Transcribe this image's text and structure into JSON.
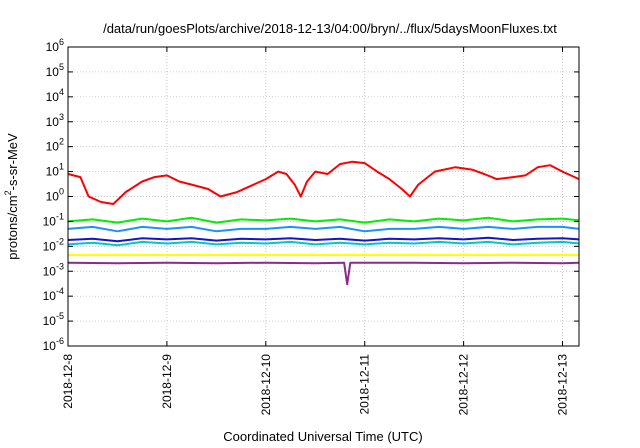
{
  "chart_data": {
    "type": "line",
    "title": "/data/run/goesPlots/archive/2018-12-13/04:00/bryn/../flux/5daysMoonFluxes.txt",
    "xlabel": "Coordinated Universal Time (UTC)",
    "ylabel": "protons/cm2-s-sr-MeV",
    "ylabel_parts": {
      "before": "protons/cm",
      "sup": "2",
      "after": "-s-sr-MeV"
    },
    "y_scale": "log",
    "ylim": [
      1e-06,
      1000000.0
    ],
    "y_ticks": [
      {
        "exp": -6,
        "base": "10",
        "sup": "-6"
      },
      {
        "exp": -5,
        "base": "10",
        "sup": "-5"
      },
      {
        "exp": -4,
        "base": "10",
        "sup": "-4"
      },
      {
        "exp": -3,
        "base": "10",
        "sup": "-3"
      },
      {
        "exp": -2,
        "base": "10",
        "sup": "-2"
      },
      {
        "exp": -1,
        "base": "10",
        "sup": "-1"
      },
      {
        "exp": 0,
        "base": "10",
        "sup": "0"
      },
      {
        "exp": 1,
        "base": "10",
        "sup": "1"
      },
      {
        "exp": 2,
        "base": "10",
        "sup": "2"
      },
      {
        "exp": 3,
        "base": "10",
        "sup": "3"
      },
      {
        "exp": 4,
        "base": "10",
        "sup": "4"
      },
      {
        "exp": 5,
        "base": "10",
        "sup": "5"
      },
      {
        "exp": 6,
        "base": "10",
        "sup": "6"
      }
    ],
    "xlim": [
      "2018-12-08 00:00",
      "2018-12-13 04:00"
    ],
    "x_ticks": [
      "2018-12-8",
      "2018-12-9",
      "2018-12-10",
      "2018-12-11",
      "2018-12-12",
      "2018-12-13"
    ],
    "grid": true,
    "series": [
      {
        "color": "#ff0000",
        "values": [
          [
            "2018-12-08 00:00",
            8
          ],
          [
            "2018-12-08 03:00",
            6
          ],
          [
            "2018-12-08 05:00",
            1.0
          ],
          [
            "2018-12-08 08:00",
            0.6
          ],
          [
            "2018-12-08 11:00",
            0.5
          ],
          [
            "2018-12-08 14:00",
            1.5
          ],
          [
            "2018-12-08 18:00",
            4
          ],
          [
            "2018-12-08 21:00",
            6
          ],
          [
            "2018-12-09 00:00",
            7
          ],
          [
            "2018-12-09 03:00",
            4
          ],
          [
            "2018-12-09 06:00",
            3
          ],
          [
            "2018-12-09 10:00",
            2
          ],
          [
            "2018-12-09 13:00",
            1.0
          ],
          [
            "2018-12-09 17:00",
            1.5
          ],
          [
            "2018-12-09 20:00",
            2.5
          ],
          [
            "2018-12-10 00:00",
            5
          ],
          [
            "2018-12-10 03:00",
            10
          ],
          [
            "2018-12-10 05:00",
            8
          ],
          [
            "2018-12-10 07:00",
            3
          ],
          [
            "2018-12-10 08:30",
            1.0
          ],
          [
            "2018-12-10 10:00",
            4
          ],
          [
            "2018-12-10 12:00",
            10
          ],
          [
            "2018-12-10 15:00",
            8
          ],
          [
            "2018-12-10 18:00",
            20
          ],
          [
            "2018-12-10 21:00",
            25
          ],
          [
            "2018-12-11 00:00",
            22
          ],
          [
            "2018-12-11 03:00",
            10
          ],
          [
            "2018-12-11 06:00",
            5
          ],
          [
            "2018-12-11 09:00",
            2
          ],
          [
            "2018-12-11 11:00",
            1.0
          ],
          [
            "2018-12-11 13:00",
            3
          ],
          [
            "2018-12-11 17:00",
            10
          ],
          [
            "2018-12-11 22:00",
            15
          ],
          [
            "2018-12-12 02:00",
            12
          ],
          [
            "2018-12-12 05:00",
            8
          ],
          [
            "2018-12-12 08:00",
            5
          ],
          [
            "2018-12-12 12:00",
            6
          ],
          [
            "2018-12-12 15:00",
            7
          ],
          [
            "2018-12-12 18:00",
            15
          ],
          [
            "2018-12-12 21:00",
            18
          ],
          [
            "2018-12-13 00:00",
            10
          ],
          [
            "2018-12-13 02:00",
            7
          ],
          [
            "2018-12-13 04:00",
            5
          ]
        ]
      },
      {
        "color": "#00ee00",
        "values": [
          [
            "2018-12-08 00:00",
            0.1
          ],
          [
            "2018-12-08 06:00",
            0.12
          ],
          [
            "2018-12-08 12:00",
            0.09
          ],
          [
            "2018-12-08 18:00",
            0.13
          ],
          [
            "2018-12-09 00:00",
            0.1
          ],
          [
            "2018-12-09 06:00",
            0.14
          ],
          [
            "2018-12-09 12:00",
            0.09
          ],
          [
            "2018-12-09 18:00",
            0.12
          ],
          [
            "2018-12-10 00:00",
            0.11
          ],
          [
            "2018-12-10 06:00",
            0.13
          ],
          [
            "2018-12-10 12:00",
            0.1
          ],
          [
            "2018-12-10 18:00",
            0.12
          ],
          [
            "2018-12-11 00:00",
            0.09
          ],
          [
            "2018-12-11 06:00",
            0.12
          ],
          [
            "2018-12-11 12:00",
            0.1
          ],
          [
            "2018-12-11 18:00",
            0.13
          ],
          [
            "2018-12-12 00:00",
            0.11
          ],
          [
            "2018-12-12 06:00",
            0.14
          ],
          [
            "2018-12-12 12:00",
            0.1
          ],
          [
            "2018-12-12 18:00",
            0.12
          ],
          [
            "2018-12-13 00:00",
            0.13
          ],
          [
            "2018-12-13 04:00",
            0.11
          ]
        ]
      },
      {
        "color": "#1e8fff",
        "values": [
          [
            "2018-12-08 00:00",
            0.05
          ],
          [
            "2018-12-08 06:00",
            0.06
          ],
          [
            "2018-12-08 12:00",
            0.04
          ],
          [
            "2018-12-08 18:00",
            0.06
          ],
          [
            "2018-12-09 00:00",
            0.05
          ],
          [
            "2018-12-09 06:00",
            0.06
          ],
          [
            "2018-12-09 12:00",
            0.04
          ],
          [
            "2018-12-09 18:00",
            0.05
          ],
          [
            "2018-12-10 00:00",
            0.05
          ],
          [
            "2018-12-10 06:00",
            0.06
          ],
          [
            "2018-12-10 12:00",
            0.05
          ],
          [
            "2018-12-10 18:00",
            0.06
          ],
          [
            "2018-12-11 00:00",
            0.04
          ],
          [
            "2018-12-11 06:00",
            0.05
          ],
          [
            "2018-12-11 12:00",
            0.05
          ],
          [
            "2018-12-11 18:00",
            0.06
          ],
          [
            "2018-12-12 00:00",
            0.05
          ],
          [
            "2018-12-12 06:00",
            0.06
          ],
          [
            "2018-12-12 12:00",
            0.05
          ],
          [
            "2018-12-12 18:00",
            0.06
          ],
          [
            "2018-12-13 00:00",
            0.06
          ],
          [
            "2018-12-13 04:00",
            0.05
          ]
        ]
      },
      {
        "color": "#00c8c8",
        "values": [
          [
            "2018-12-08 00:00",
            0.012
          ],
          [
            "2018-12-08 06:00",
            0.014
          ],
          [
            "2018-12-08 12:00",
            0.011
          ],
          [
            "2018-12-08 18:00",
            0.015
          ],
          [
            "2018-12-09 00:00",
            0.013
          ],
          [
            "2018-12-09 06:00",
            0.015
          ],
          [
            "2018-12-09 12:00",
            0.012
          ],
          [
            "2018-12-09 18:00",
            0.014
          ],
          [
            "2018-12-10 00:00",
            0.013
          ],
          [
            "2018-12-10 06:00",
            0.015
          ],
          [
            "2018-12-10 12:00",
            0.012
          ],
          [
            "2018-12-10 18:00",
            0.014
          ],
          [
            "2018-12-11 00:00",
            0.012
          ],
          [
            "2018-12-11 06:00",
            0.014
          ],
          [
            "2018-12-11 12:00",
            0.013
          ],
          [
            "2018-12-11 18:00",
            0.015
          ],
          [
            "2018-12-12 00:00",
            0.013
          ],
          [
            "2018-12-12 06:00",
            0.015
          ],
          [
            "2018-12-12 12:00",
            0.012
          ],
          [
            "2018-12-12 18:00",
            0.014
          ],
          [
            "2018-12-13 00:00",
            0.015
          ],
          [
            "2018-12-13 04:00",
            0.013
          ]
        ]
      },
      {
        "color": "#1414c8",
        "values": [
          [
            "2018-12-08 00:00",
            0.018
          ],
          [
            "2018-12-08 06:00",
            0.02
          ],
          [
            "2018-12-08 12:00",
            0.016
          ],
          [
            "2018-12-08 18:00",
            0.021
          ],
          [
            "2018-12-09 00:00",
            0.019
          ],
          [
            "2018-12-09 06:00",
            0.021
          ],
          [
            "2018-12-09 12:00",
            0.017
          ],
          [
            "2018-12-09 18:00",
            0.02
          ],
          [
            "2018-12-10 00:00",
            0.019
          ],
          [
            "2018-12-10 06:00",
            0.021
          ],
          [
            "2018-12-10 12:00",
            0.018
          ],
          [
            "2018-12-10 18:00",
            0.02
          ],
          [
            "2018-12-11 00:00",
            0.017
          ],
          [
            "2018-12-11 06:00",
            0.02
          ],
          [
            "2018-12-11 12:00",
            0.019
          ],
          [
            "2018-12-11 18:00",
            0.021
          ],
          [
            "2018-12-12 00:00",
            0.019
          ],
          [
            "2018-12-12 06:00",
            0.022
          ],
          [
            "2018-12-12 12:00",
            0.018
          ],
          [
            "2018-12-12 18:00",
            0.02
          ],
          [
            "2018-12-13 00:00",
            0.021
          ],
          [
            "2018-12-13 04:00",
            0.019
          ]
        ]
      },
      {
        "color": "#ffff00",
        "values": [
          [
            "2018-12-08 00:00",
            0.0045
          ],
          [
            "2018-12-08 12:00",
            0.0045
          ],
          [
            "2018-12-09 00:00",
            0.0045
          ],
          [
            "2018-12-09 12:00",
            0.0045
          ],
          [
            "2018-12-10 00:00",
            0.0045
          ],
          [
            "2018-12-10 12:00",
            0.0045
          ],
          [
            "2018-12-11 00:00",
            0.0045
          ],
          [
            "2018-12-11 12:00",
            0.0045
          ],
          [
            "2018-12-12 00:00",
            0.0045
          ],
          [
            "2018-12-12 12:00",
            0.0045
          ],
          [
            "2018-12-13 00:00",
            0.0045
          ],
          [
            "2018-12-13 04:00",
            0.0045
          ]
        ]
      },
      {
        "color": "#8b2c8b",
        "values": [
          [
            "2018-12-08 00:00",
            0.0022
          ],
          [
            "2018-12-08 12:00",
            0.0021
          ],
          [
            "2018-12-09 00:00",
            0.0022
          ],
          [
            "2018-12-09 12:00",
            0.0021
          ],
          [
            "2018-12-10 00:00",
            0.0022
          ],
          [
            "2018-12-10 12:00",
            0.0021
          ],
          [
            "2018-12-10 19:00",
            0.0022
          ],
          [
            "2018-12-10 19:45",
            0.0003
          ],
          [
            "2018-12-10 20:30",
            0.0022
          ],
          [
            "2018-12-11 12:00",
            0.0022
          ],
          [
            "2018-12-12 00:00",
            0.0021
          ],
          [
            "2018-12-12 12:00",
            0.0022
          ],
          [
            "2018-12-13 00:00",
            0.0021
          ],
          [
            "2018-12-13 04:00",
            0.0022
          ]
        ]
      }
    ]
  }
}
